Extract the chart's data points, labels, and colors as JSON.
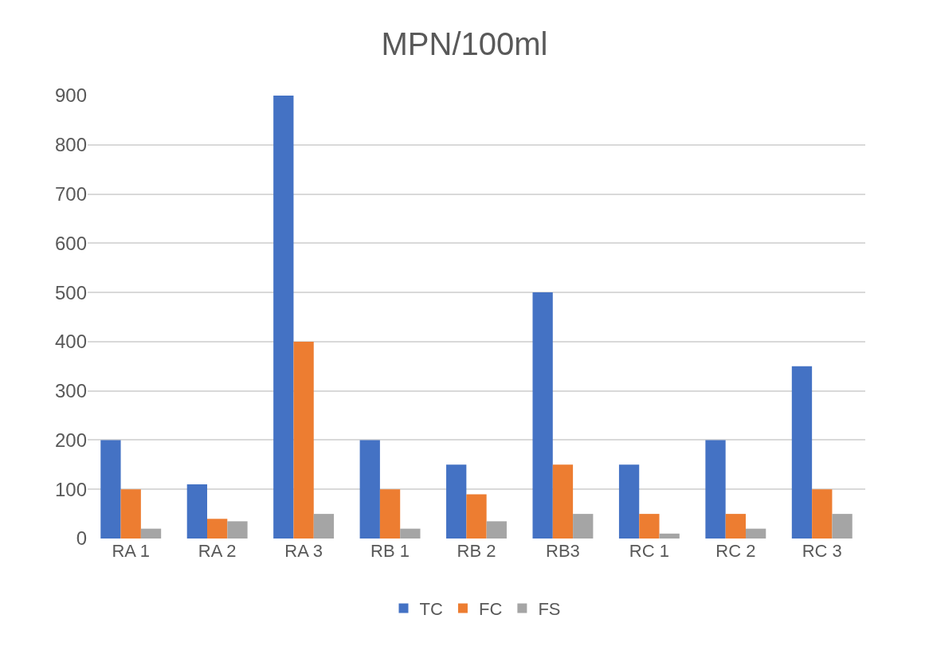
{
  "chart_data": {
    "type": "bar",
    "title": "MPN/100ml",
    "categories": [
      "RA 1",
      "RA 2",
      "RA 3",
      "RB 1",
      "RB 2",
      "RB3",
      "RC 1",
      "RC 2",
      "RC 3"
    ],
    "series": [
      {
        "name": "TC",
        "color": "#4472c4",
        "values": [
          200,
          110,
          900,
          200,
          150,
          500,
          150,
          200,
          350
        ]
      },
      {
        "name": "FC",
        "color": "#ed7d31",
        "values": [
          100,
          40,
          400,
          100,
          90,
          150,
          50,
          50,
          100
        ]
      },
      {
        "name": "FS",
        "color": "#a5a5a5",
        "values": [
          20,
          35,
          50,
          20,
          35,
          50,
          10,
          20,
          50
        ]
      }
    ],
    "ylim": [
      0,
      900
    ],
    "yticks": [
      0,
      100,
      200,
      300,
      400,
      500,
      600,
      700,
      800,
      900
    ],
    "grid": "y",
    "legend": "bottom"
  }
}
